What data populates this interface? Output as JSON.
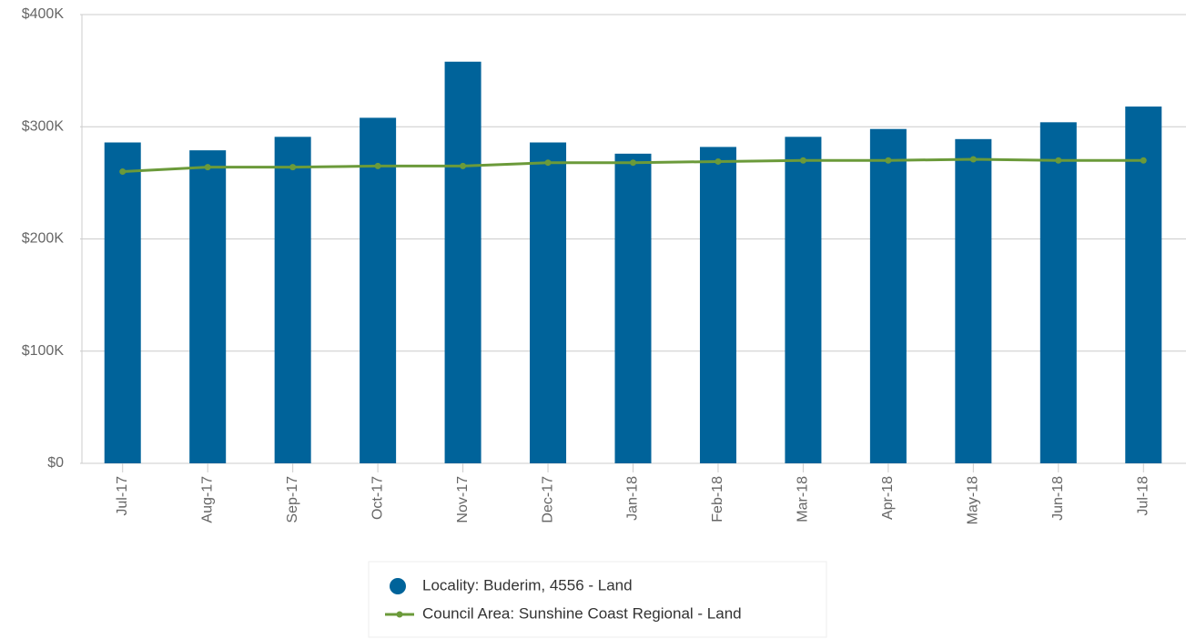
{
  "chart_data": {
    "type": "bar",
    "categories": [
      "Jul-17",
      "Aug-17",
      "Sep-17",
      "Oct-17",
      "Nov-17",
      "Dec-17",
      "Jan-18",
      "Feb-18",
      "Mar-18",
      "Apr-18",
      "May-18",
      "Jun-18",
      "Jul-18"
    ],
    "series": [
      {
        "name": "Locality: Buderim, 4556 - Land",
        "type": "bar",
        "color": "#00639a",
        "values": [
          286000,
          279000,
          291000,
          308000,
          358000,
          286000,
          276000,
          282000,
          291000,
          298000,
          289000,
          304000,
          318000
        ]
      },
      {
        "name": "Council Area: Sunshine Coast Regional - Land",
        "type": "line",
        "color": "#6b9a3a",
        "values": [
          260000,
          264000,
          264000,
          265000,
          265000,
          268000,
          268000,
          269000,
          270000,
          270000,
          271000,
          270000,
          270000
        ]
      }
    ],
    "ylim": [
      0,
      400000
    ],
    "yticks": [
      {
        "value": 0,
        "label": "$0"
      },
      {
        "value": 100000,
        "label": "$100K"
      },
      {
        "value": 200000,
        "label": "$200K"
      },
      {
        "value": 300000,
        "label": "$300K"
      },
      {
        "value": 400000,
        "label": "$400K"
      }
    ],
    "grid": true
  }
}
